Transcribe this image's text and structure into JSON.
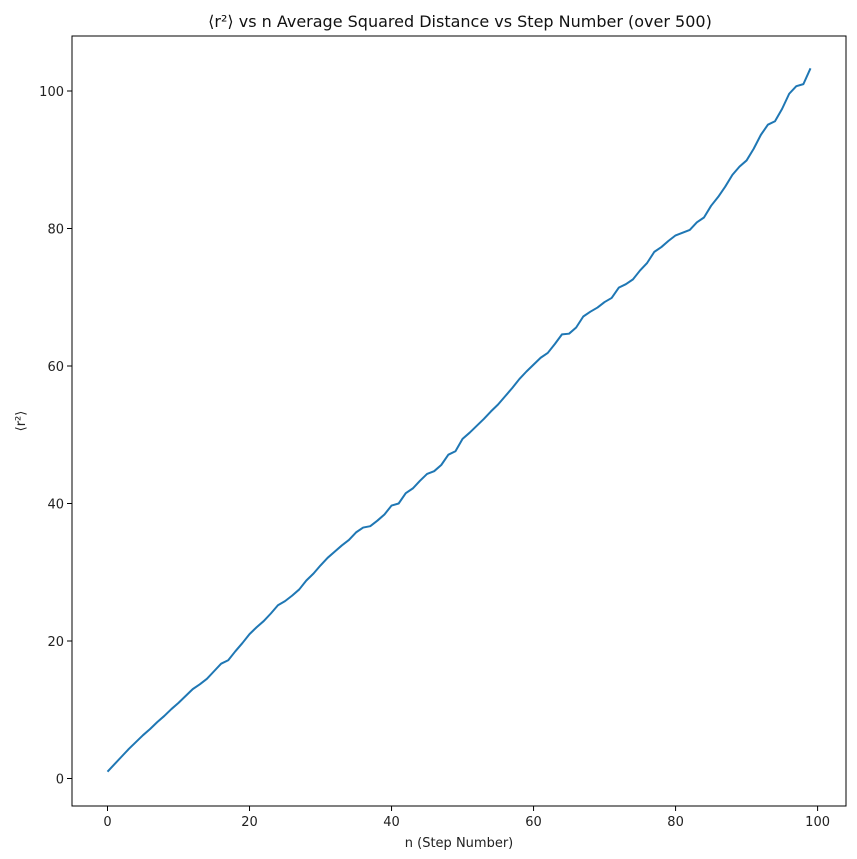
{
  "chart_data": {
    "type": "line",
    "title": "⟨r²⟩ vs n Average Squared Distance vs Step Number (over 500)",
    "xlabel": "n (Step Number)",
    "ylabel": "⟨r²⟩",
    "xlim": [
      -5,
      104
    ],
    "ylim": [
      -4,
      108
    ],
    "xticks": [
      0,
      20,
      40,
      60,
      80,
      100
    ],
    "yticks": [
      0,
      20,
      40,
      60,
      80,
      100
    ],
    "grid": false,
    "line_color": "#1f77b4",
    "series": [
      {
        "x": [
          0,
          1,
          2,
          3,
          4,
          5,
          6,
          7,
          8,
          9,
          10,
          11,
          12,
          13,
          14,
          15,
          16,
          17,
          18,
          19,
          20,
          21,
          22,
          23,
          24,
          25,
          26,
          27,
          28,
          29,
          30,
          31,
          32,
          33,
          34,
          35,
          36,
          37,
          38,
          39,
          40,
          41,
          42,
          43,
          44,
          45,
          46,
          47,
          48,
          49,
          50,
          51,
          52,
          53,
          54,
          55,
          56,
          57,
          58,
          59,
          60,
          61,
          62,
          63,
          64,
          65,
          66,
          67,
          68,
          69,
          70,
          71,
          72,
          73,
          74,
          75,
          76,
          77,
          78,
          79,
          80,
          81,
          82,
          83,
          84,
          85,
          86,
          87,
          88,
          89,
          90,
          91,
          92,
          93,
          94,
          95,
          96,
          97,
          98,
          99
        ],
        "y": [
          1.0,
          2.1,
          3.2,
          4.3,
          5.3,
          6.3,
          7.2,
          8.2,
          9.1,
          10.1,
          11.0,
          12.0,
          13.0,
          13.7,
          14.5,
          15.6,
          16.7,
          17.2,
          18.5,
          19.7,
          21.0,
          22.0,
          22.9,
          24.0,
          25.2,
          25.8,
          26.6,
          27.5,
          28.8,
          29.8,
          31.0,
          32.1,
          33.0,
          33.9,
          34.7,
          35.8,
          36.5,
          36.7,
          37.5,
          38.4,
          39.7,
          40.0,
          41.5,
          42.2,
          43.3,
          44.3,
          44.7,
          45.6,
          47.1,
          47.6,
          49.4,
          50.3,
          51.3,
          52.3,
          53.4,
          54.4,
          55.6,
          56.8,
          58.1,
          59.2,
          60.2,
          61.2,
          61.9,
          63.2,
          64.6,
          64.7,
          65.6,
          67.2,
          67.9,
          68.5,
          69.3,
          69.9,
          71.4,
          71.9,
          72.6,
          73.9,
          75.0,
          76.6,
          77.3,
          78.2,
          79.0,
          79.4,
          79.8,
          80.9,
          81.6,
          83.3,
          84.6,
          86.1,
          87.8,
          89.0,
          89.9,
          91.6,
          93.6,
          95.1,
          95.6,
          97.4,
          99.6,
          100.7,
          101.0,
          103.3
        ]
      }
    ]
  }
}
